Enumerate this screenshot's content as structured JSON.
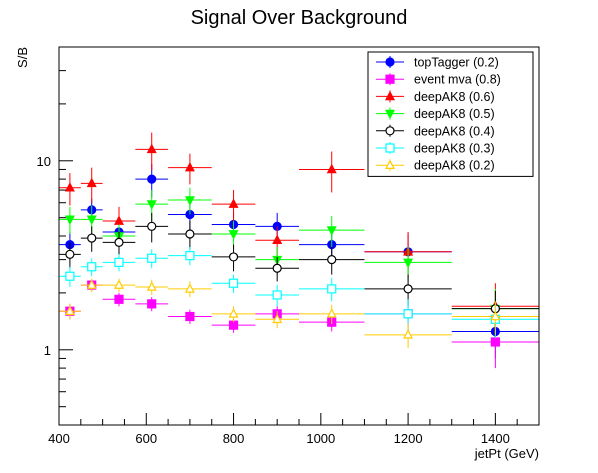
{
  "chart_data": {
    "type": "scatter",
    "title": "Signal Over Background",
    "xlabel": "jetPt (GeV)",
    "ylabel": "S/B",
    "xlim": [
      400,
      1500
    ],
    "ylim": [
      0.4,
      40
    ],
    "yscale": "log",
    "x_ticks": [
      400,
      600,
      800,
      1000,
      1200,
      1400
    ],
    "y_ticks": [
      1,
      10
    ],
    "grid": false,
    "legend_position": "top-right",
    "bins": [
      [
        400,
        450
      ],
      [
        450,
        500
      ],
      [
        500,
        575
      ],
      [
        575,
        650
      ],
      [
        650,
        750
      ],
      [
        750,
        850
      ],
      [
        850,
        950
      ],
      [
        950,
        1100
      ],
      [
        1100,
        1300
      ],
      [
        1300,
        1500
      ]
    ],
    "series": [
      {
        "name": "topTagger (0.2)",
        "color": "#0000ff",
        "marker": "filled-circle",
        "values": [
          3.6,
          5.5,
          4.2,
          8.0,
          5.2,
          4.6,
          4.5,
          3.6,
          3.3,
          1.25
        ],
        "errors": [
          0.6,
          0.8,
          0.7,
          1.6,
          0.9,
          0.8,
          0.8,
          0.7,
          0.8,
          0.35
        ]
      },
      {
        "name": "event mva (0.8)",
        "color": "#ff00ff",
        "marker": "filled-square",
        "values": [
          1.6,
          2.2,
          1.85,
          1.75,
          1.5,
          1.35,
          1.55,
          1.4,
          1.55,
          1.1
        ],
        "errors": [
          0.15,
          0.15,
          0.15,
          0.15,
          0.13,
          0.12,
          0.15,
          0.15,
          0.3,
          0.3
        ]
      },
      {
        "name": "deepAK8 (0.6)",
        "color": "#ff0000",
        "marker": "filled-triangle-up",
        "values": [
          7.2,
          7.6,
          4.8,
          11.5,
          9.2,
          5.9,
          3.8,
          9.0,
          3.3,
          1.7
        ],
        "errors": [
          1.4,
          1.6,
          0.9,
          2.6,
          1.7,
          1.1,
          0.7,
          2.2,
          0.9,
          0.55
        ]
      },
      {
        "name": "deepAK8 (0.5)",
        "color": "#00ff00",
        "marker": "filled-triangle-down",
        "values": [
          4.9,
          4.9,
          4.0,
          5.9,
          6.2,
          4.1,
          3.0,
          4.3,
          2.9,
          1.65
        ],
        "errors": [
          0.8,
          0.9,
          0.6,
          1.1,
          1.0,
          0.7,
          0.5,
          0.8,
          0.6,
          0.45
        ]
      },
      {
        "name": "deepAK8 (0.4)",
        "color": "#000000",
        "marker": "open-circle",
        "values": [
          3.2,
          3.9,
          3.7,
          4.5,
          4.1,
          3.1,
          2.7,
          3.0,
          2.1,
          1.65
        ],
        "errors": [
          0.5,
          0.6,
          0.5,
          0.8,
          0.7,
          0.5,
          0.4,
          0.5,
          0.4,
          0.4
        ]
      },
      {
        "name": "deepAK8 (0.3)",
        "color": "#00ffff",
        "marker": "open-square",
        "values": [
          2.45,
          2.75,
          2.9,
          3.05,
          3.15,
          2.25,
          1.95,
          2.1,
          1.55,
          1.45
        ],
        "errors": [
          0.3,
          0.3,
          0.3,
          0.35,
          0.35,
          0.25,
          0.25,
          0.3,
          0.3,
          0.3
        ]
      },
      {
        "name": "deepAK8 (0.2)",
        "color": "#ffcc00",
        "marker": "open-triangle-up",
        "values": [
          1.6,
          2.2,
          2.2,
          2.15,
          2.1,
          1.55,
          1.45,
          1.55,
          1.2,
          1.5
        ],
        "errors": [
          0.15,
          0.18,
          0.18,
          0.2,
          0.2,
          0.15,
          0.15,
          0.18,
          0.18,
          0.3
        ]
      }
    ]
  }
}
